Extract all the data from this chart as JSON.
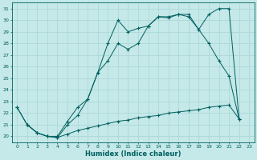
{
  "title": "",
  "xlabel": "Humidex (Indice chaleur)",
  "ylabel": "",
  "bg_color": "#c5e8e8",
  "grid_color": "#add8d8",
  "line_color": "#006060",
  "xlim": [
    -0.5,
    23.5
  ],
  "ylim": [
    19.5,
    31.5
  ],
  "yticks": [
    20,
    21,
    22,
    23,
    24,
    25,
    26,
    27,
    28,
    29,
    30,
    31
  ],
  "xticks": [
    0,
    1,
    2,
    3,
    4,
    5,
    6,
    7,
    8,
    9,
    10,
    11,
    12,
    13,
    14,
    15,
    16,
    17,
    18,
    19,
    20,
    21,
    22,
    23
  ],
  "series1_x": [
    0,
    1,
    2,
    3,
    4,
    5,
    6,
    7,
    8,
    9,
    10,
    11,
    12,
    13,
    14,
    15,
    16,
    17,
    18,
    19,
    20,
    21,
    22
  ],
  "series1_y": [
    22.5,
    21.0,
    20.3,
    20.0,
    19.9,
    20.2,
    20.5,
    20.7,
    20.9,
    21.1,
    21.3,
    21.4,
    21.6,
    21.7,
    21.8,
    22.0,
    22.1,
    22.2,
    22.3,
    22.5,
    22.6,
    22.7,
    21.5
  ],
  "series2_x": [
    0,
    1,
    2,
    3,
    4,
    5,
    6,
    7,
    8,
    9,
    10,
    11,
    12,
    13,
    14,
    15,
    16,
    17,
    18,
    19,
    20,
    21,
    22
  ],
  "series2_y": [
    22.5,
    21.0,
    20.3,
    20.0,
    19.9,
    21.0,
    21.8,
    23.2,
    25.5,
    26.5,
    28.0,
    27.5,
    28.0,
    29.5,
    30.3,
    30.2,
    30.5,
    30.3,
    29.2,
    28.0,
    26.5,
    25.2,
    21.5
  ],
  "series3_x": [
    1,
    2,
    3,
    4,
    5,
    6,
    7,
    8,
    9,
    10,
    11,
    12,
    13,
    14,
    15,
    16,
    17,
    18,
    19,
    20,
    21,
    22
  ],
  "series3_y": [
    21.0,
    20.3,
    20.0,
    20.0,
    21.3,
    22.5,
    23.2,
    25.5,
    28.0,
    30.0,
    29.0,
    29.3,
    29.5,
    30.3,
    30.3,
    30.5,
    30.5,
    29.2,
    30.5,
    31.0,
    31.0,
    21.5
  ]
}
